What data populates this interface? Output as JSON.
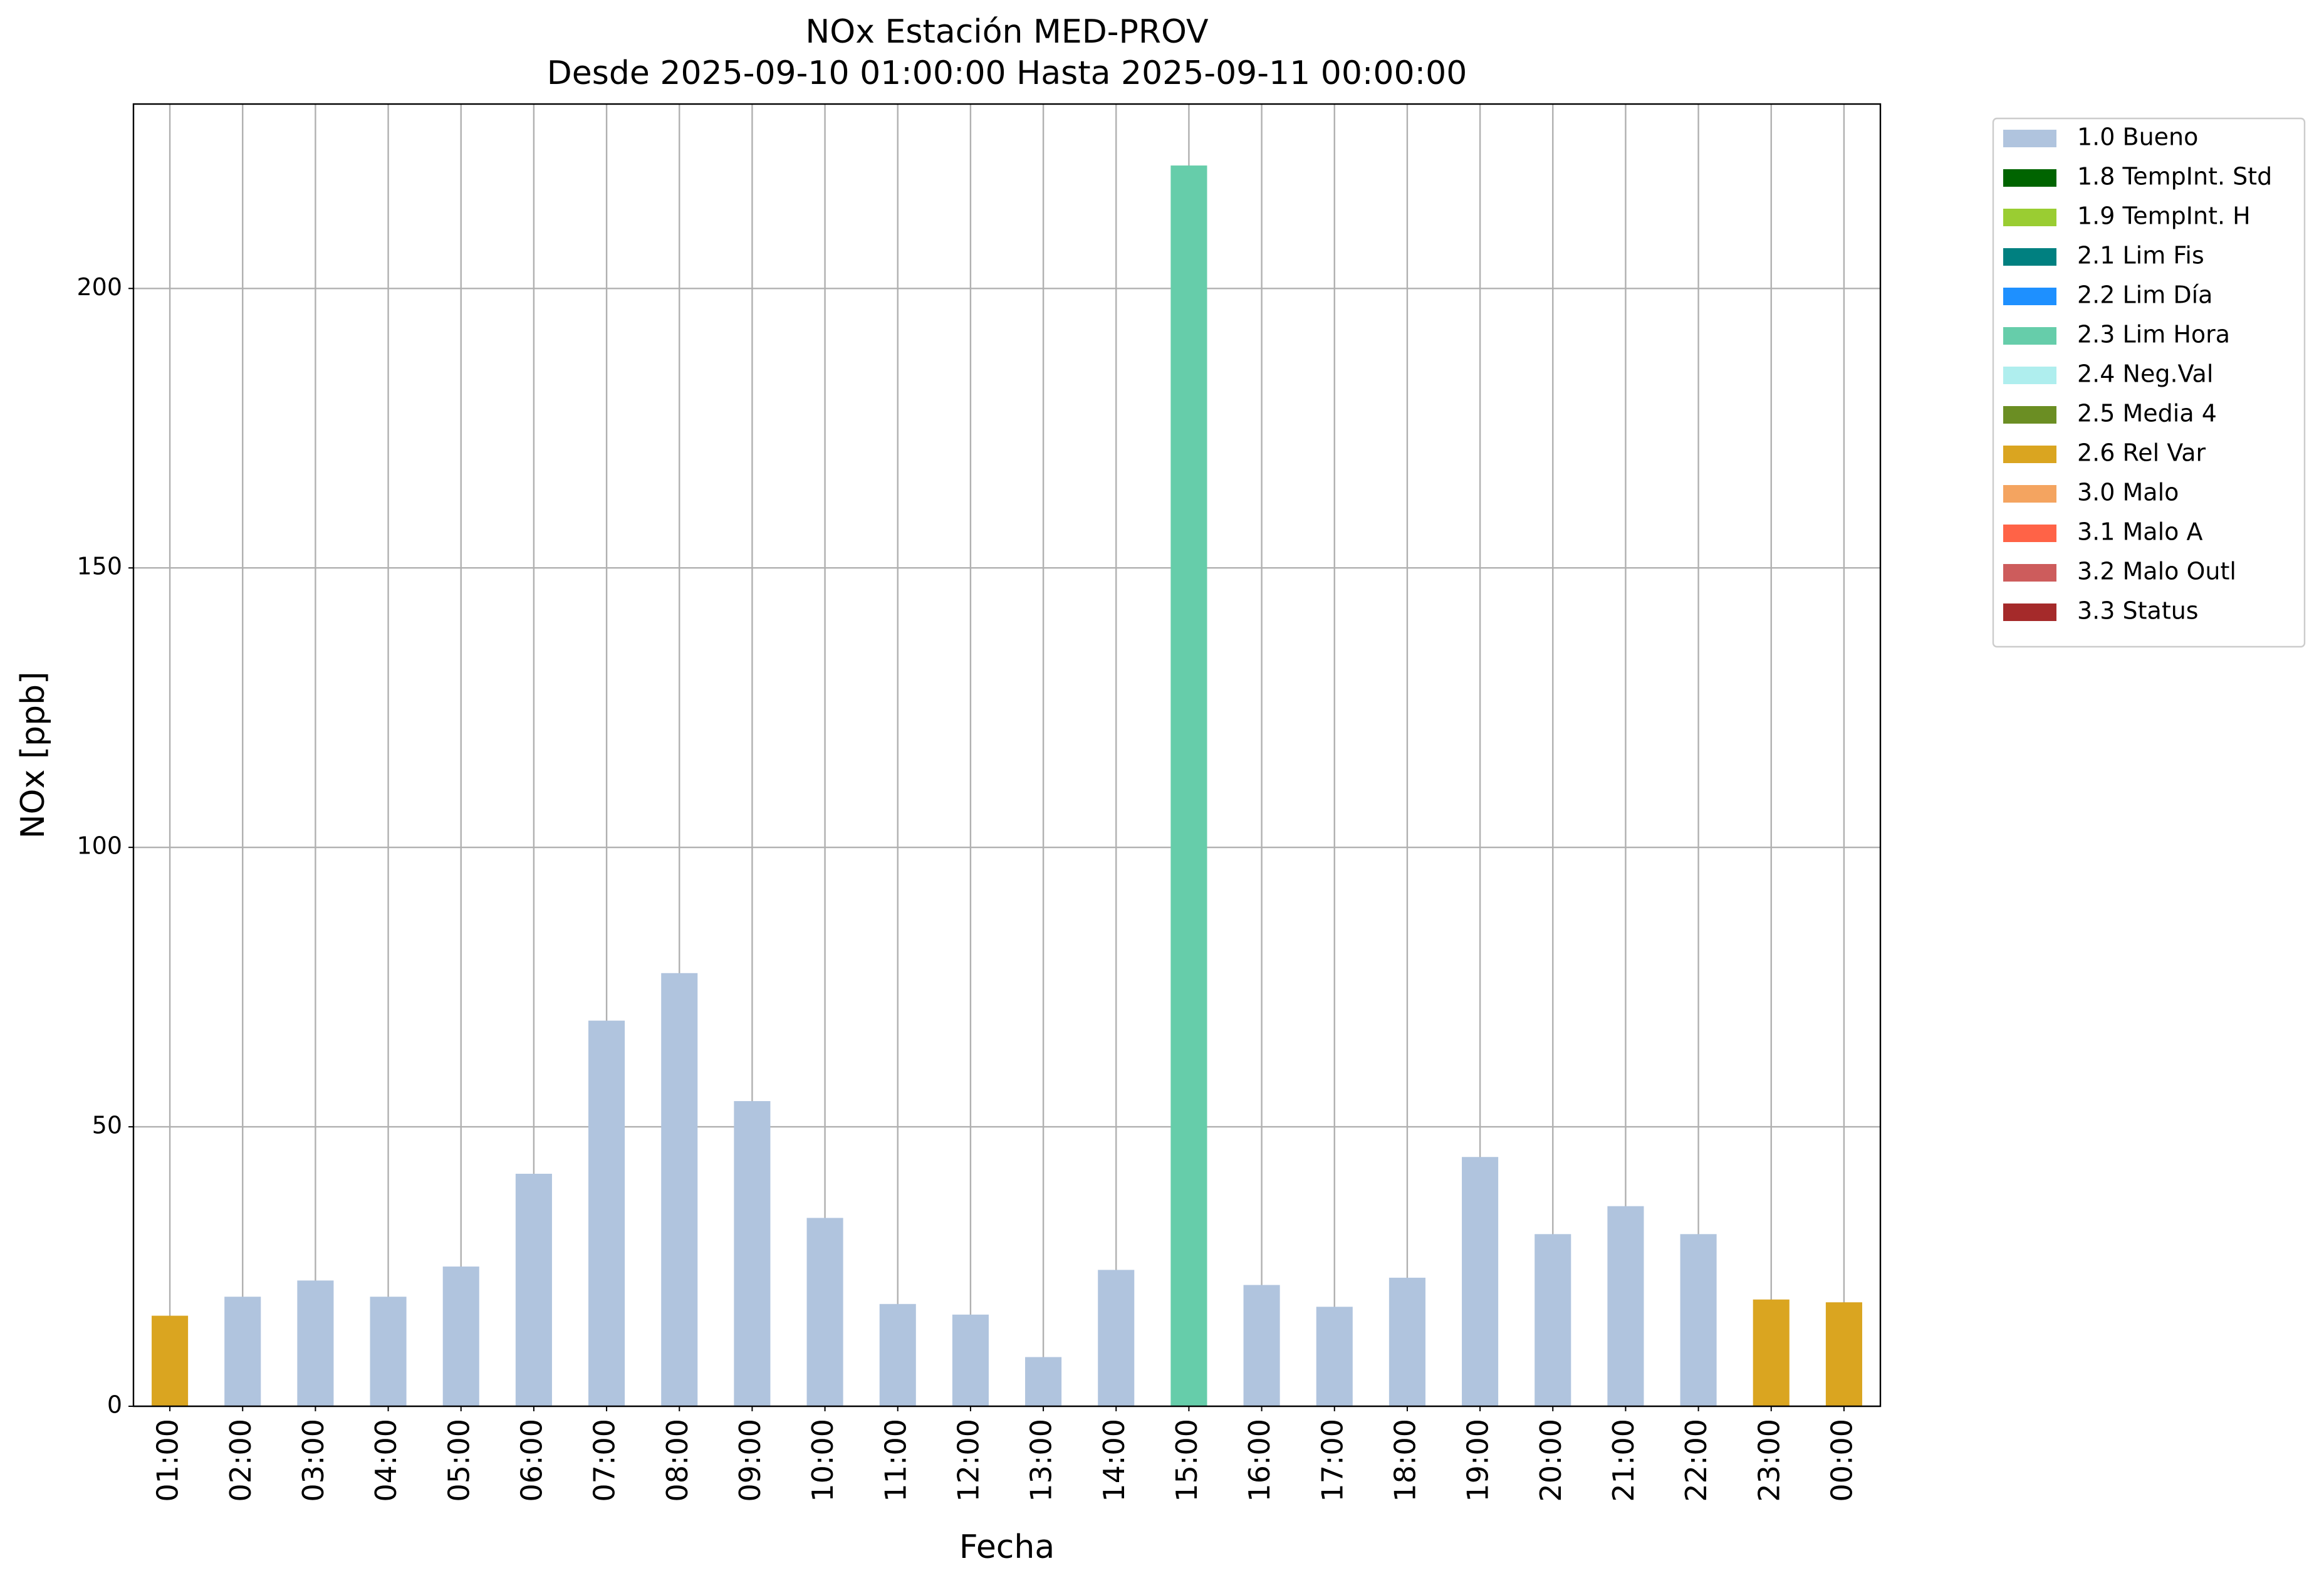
{
  "chart_data": {
    "type": "stacked-bar",
    "title": "NOx Estación MED-PROV",
    "subtitle": "Desde 2025-09-10 01:00:00 Hasta 2025-09-11 00:00:00",
    "x_label": "Fecha",
    "y_label": "NOx [ppb]",
    "categories": [
      "01:00",
      "02:00",
      "03:00",
      "04:00",
      "05:00",
      "06:00",
      "07:00",
      "08:00",
      "09:00",
      "10:00",
      "11:00",
      "12:00",
      "13:00",
      "14:00",
      "15:00",
      "16:00",
      "17:00",
      "18:00",
      "19:00",
      "20:00",
      "21:00",
      "22:00",
      "23:00",
      "00:00"
    ],
    "ylim": [
      0,
      233
    ],
    "yticks": [
      0,
      50,
      100,
      150,
      200
    ],
    "grid": true,
    "legend": "outside-right",
    "series": [
      {
        "name": "1.0 Bueno",
        "color": "#b0c4de",
        "values": [
          null,
          19.6,
          22.5,
          19.6,
          25,
          41.6,
          69,
          77.5,
          54.6,
          33.7,
          18.3,
          16.4,
          8.8,
          24.4,
          null,
          21.7,
          17.8,
          23,
          44.6,
          30.8,
          35.8,
          30.8,
          null,
          null
        ]
      },
      {
        "name": "1.8 TempInt. Std",
        "color": "#006400",
        "values": [
          null,
          null,
          null,
          null,
          null,
          null,
          null,
          null,
          null,
          null,
          null,
          null,
          null,
          null,
          null,
          null,
          null,
          null,
          null,
          null,
          null,
          null,
          null,
          null
        ]
      },
      {
        "name": "1.9 TempInt. H",
        "color": "#9acd32",
        "values": [
          null,
          null,
          null,
          null,
          null,
          null,
          null,
          null,
          null,
          null,
          null,
          null,
          null,
          null,
          null,
          null,
          null,
          null,
          null,
          null,
          null,
          null,
          null,
          null
        ]
      },
      {
        "name": "2.1 Lim Fis",
        "color": "#008080",
        "values": [
          null,
          null,
          null,
          null,
          null,
          null,
          null,
          null,
          null,
          null,
          null,
          null,
          null,
          null,
          null,
          null,
          null,
          null,
          null,
          null,
          null,
          null,
          null,
          null
        ]
      },
      {
        "name": "2.2 Lim Día",
        "color": "#1e90ff",
        "values": [
          null,
          null,
          null,
          null,
          null,
          null,
          null,
          null,
          null,
          null,
          null,
          null,
          null,
          null,
          null,
          null,
          null,
          null,
          null,
          null,
          null,
          null,
          null,
          null
        ]
      },
      {
        "name": "2.3 Lim Hora",
        "color": "#66cdaa",
        "values": [
          null,
          null,
          null,
          null,
          null,
          null,
          null,
          null,
          null,
          null,
          null,
          null,
          null,
          null,
          222,
          null,
          null,
          null,
          null,
          null,
          null,
          null,
          null,
          null
        ]
      },
      {
        "name": "2.4 Neg.Val",
        "color": "#afeeee",
        "values": [
          null,
          null,
          null,
          null,
          null,
          null,
          null,
          null,
          null,
          null,
          null,
          null,
          null,
          null,
          null,
          null,
          null,
          null,
          null,
          null,
          null,
          null,
          null,
          null
        ]
      },
      {
        "name": "2.5 Media 4",
        "color": "#6b8e23",
        "values": [
          null,
          null,
          null,
          null,
          null,
          null,
          null,
          null,
          null,
          null,
          null,
          null,
          null,
          null,
          null,
          null,
          null,
          null,
          null,
          null,
          null,
          null,
          null,
          null
        ]
      },
      {
        "name": "2.6 Rel Var",
        "color": "#daa520",
        "values": [
          16.2,
          null,
          null,
          null,
          null,
          null,
          null,
          null,
          null,
          null,
          null,
          null,
          null,
          null,
          null,
          null,
          null,
          null,
          null,
          null,
          null,
          null,
          19.1,
          18.6
        ]
      },
      {
        "name": "3.0 Malo",
        "color": "#f4a460",
        "values": [
          null,
          null,
          null,
          null,
          null,
          null,
          null,
          null,
          null,
          null,
          null,
          null,
          null,
          null,
          null,
          null,
          null,
          null,
          null,
          null,
          null,
          null,
          null,
          null
        ]
      },
      {
        "name": "3.1 Malo A",
        "color": "#ff6347",
        "values": [
          null,
          null,
          null,
          null,
          null,
          null,
          null,
          null,
          null,
          null,
          null,
          null,
          null,
          null,
          null,
          null,
          null,
          null,
          null,
          null,
          null,
          null,
          null,
          null
        ]
      },
      {
        "name": "3.2 Malo Outl",
        "color": "#cd5c5c",
        "values": [
          null,
          null,
          null,
          null,
          null,
          null,
          null,
          null,
          null,
          null,
          null,
          null,
          null,
          null,
          null,
          null,
          null,
          null,
          null,
          null,
          null,
          null,
          null,
          null
        ]
      },
      {
        "name": "3.3 Status",
        "color": "#a52a2a",
        "values": [
          null,
          null,
          null,
          null,
          null,
          null,
          null,
          null,
          null,
          null,
          null,
          null,
          null,
          null,
          null,
          null,
          null,
          null,
          null,
          null,
          null,
          null,
          null,
          null
        ]
      }
    ]
  }
}
